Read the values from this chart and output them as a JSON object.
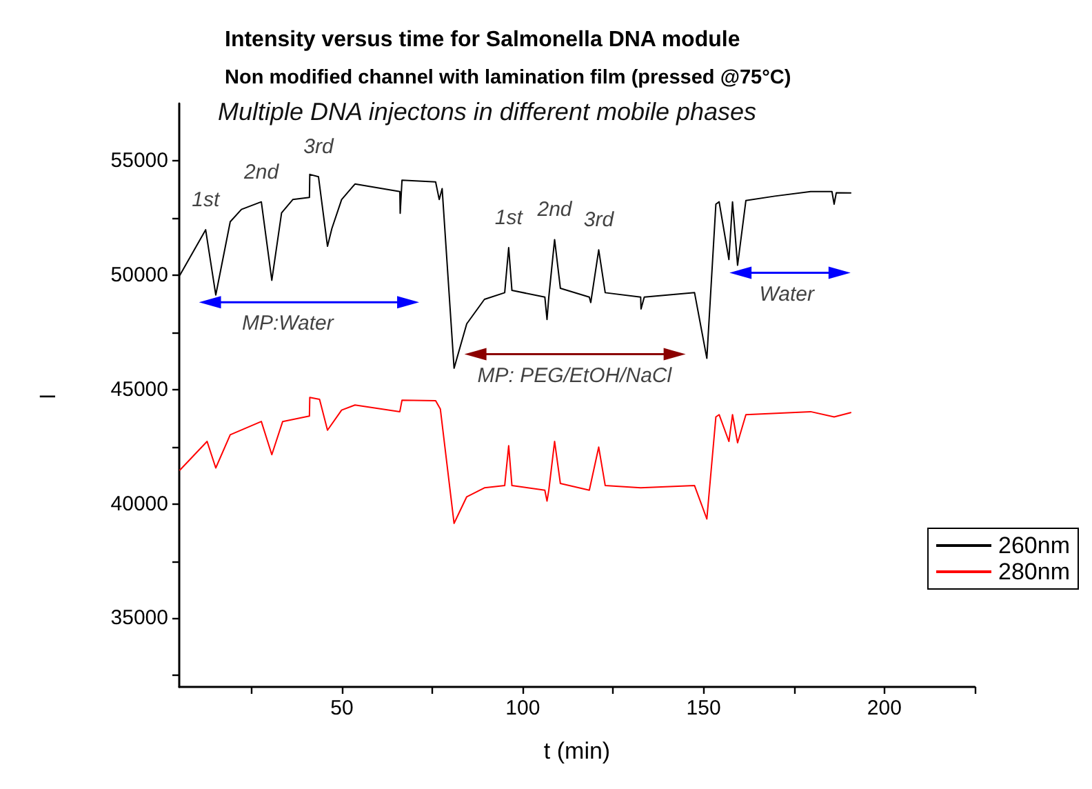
{
  "chart_data": {
    "type": "line",
    "title": "Intensity versus time for Salmonella DNA module",
    "subtitle": "Non modified channel with lamination film (pressed @75°C)",
    "xlabel": "t (min)",
    "ylabel": "–",
    "annotations": [
      "Multiple DNA injectons in different mobile phases",
      {
        "text": "1st",
        "x": 12.3,
        "y": 51980
      },
      {
        "text": "2nd",
        "x": 27.7,
        "y": 53200
      },
      {
        "text": "3rd",
        "x": 43.5,
        "y": 54300
      },
      {
        "text": "MP:Water",
        "x": 35,
        "y": 48810
      },
      {
        "text": "1st",
        "x": 96.1,
        "y": 51200
      },
      {
        "text": "2nd",
        "x": 108.8,
        "y": 51550
      },
      {
        "text": "3rd",
        "x": 121,
        "y": 51100
      },
      {
        "text": "MP: PEG/EtOH/NaCl",
        "x": 114.3,
        "y": 46540
      },
      {
        "text": "Water",
        "x": 173,
        "y": 50100
      }
    ],
    "series": [
      {
        "name": "260nm",
        "color": "#000000",
        "x": [
          5.2,
          12.3,
          15.1,
          19.1,
          22.2,
          27.7,
          30.6,
          33.3,
          36.4,
          41,
          41.1,
          43.5,
          46,
          47.2,
          49.9,
          53.6,
          66,
          66.1,
          66.6,
          75.9,
          76.9,
          77.7,
          81,
          84.5,
          89.4,
          95,
          96.1,
          97,
          106.1,
          106.7,
          107.2,
          108.8,
          110.4,
          118.4,
          118.8,
          121,
          122.8,
          132.6,
          132.7,
          133.6,
          147.5,
          150.9,
          153.4,
          154.3,
          157,
          158,
          159.4,
          161.7,
          169.7,
          179.6,
          185.5,
          186.1,
          186.7,
          190.7
        ],
        "values": [
          50000,
          51980,
          49130,
          52330,
          52870,
          53200,
          49770,
          52720,
          53300,
          53390,
          54400,
          54300,
          51260,
          52030,
          53300,
          53980,
          53650,
          52700,
          54150,
          54070,
          53300,
          53780,
          45930,
          47870,
          48940,
          49230,
          51200,
          49330,
          49040,
          48060,
          49040,
          51550,
          49420,
          49040,
          48800,
          51100,
          49230,
          49040,
          48520,
          49040,
          49230,
          46360,
          53100,
          53200,
          50680,
          53200,
          50430,
          53260,
          53450,
          53650,
          53650,
          53100,
          53600,
          53590
        ]
      },
      {
        "name": "280nm",
        "color": "#ff0000",
        "x": [
          5.2,
          12.7,
          15.1,
          19.1,
          27.7,
          30.6,
          33.6,
          41,
          41.1,
          43.8,
          46,
          49.9,
          53.6,
          66,
          66.6,
          75.9,
          77.2,
          81,
          84.5,
          89.4,
          95,
          96.1,
          97,
          106.1,
          106.7,
          107.2,
          108.8,
          110.4,
          118.4,
          121,
          122.8,
          132.6,
          147.5,
          150.9,
          153.4,
          154.3,
          157,
          158,
          159.4,
          161.7,
          179.6,
          186.1,
          190.7
        ],
        "values": [
          41480,
          42730,
          41570,
          43020,
          43600,
          42150,
          43600,
          43840,
          44650,
          44570,
          43220,
          44100,
          44320,
          44030,
          44530,
          44510,
          44150,
          39150,
          40310,
          40700,
          40800,
          42540,
          40800,
          40600,
          40120,
          40600,
          42730,
          40890,
          40600,
          42480,
          40800,
          40700,
          40800,
          39340,
          43800,
          43900,
          42730,
          43900,
          42670,
          43900,
          44030,
          43800,
          43990
        ]
      },
      {
        "color": "#0000ff",
        "marker": "triangle",
        "x": [
          13.5,
          68.3
        ],
        "values": [
          48810,
          48810
        ]
      },
      {
        "color": "#8b0000",
        "marker": "triangle",
        "x": [
          86.9,
          142
        ],
        "values": [
          46540,
          46540
        ]
      },
      {
        "color": "#0000ff",
        "marker": "triangle",
        "x": [
          160.2,
          187.6
        ],
        "values": [
          50100,
          50100
        ]
      }
    ],
    "xlim": [
      5,
      225
    ],
    "xticks": [
      {
        "value": 25,
        "label": null
      },
      50,
      {
        "value": 75,
        "label": null
      },
      100,
      {
        "value": 125,
        "label": null
      },
      150,
      {
        "value": 175,
        "label": null
      },
      200,
      {
        "value": 225,
        "label": null
      }
    ],
    "ylim": [
      32000,
      57500
    ],
    "yticks": [
      {
        "value": 32500,
        "label": null
      },
      35000,
      {
        "value": 37500,
        "label": null
      },
      40000,
      {
        "value": 42500,
        "label": null
      },
      45000,
      {
        "value": 47500,
        "label": null
      },
      50000,
      {
        "value": 52500,
        "label": null
      },
      55000
    ],
    "grid": false,
    "legend": "right",
    "marker": "none"
  }
}
